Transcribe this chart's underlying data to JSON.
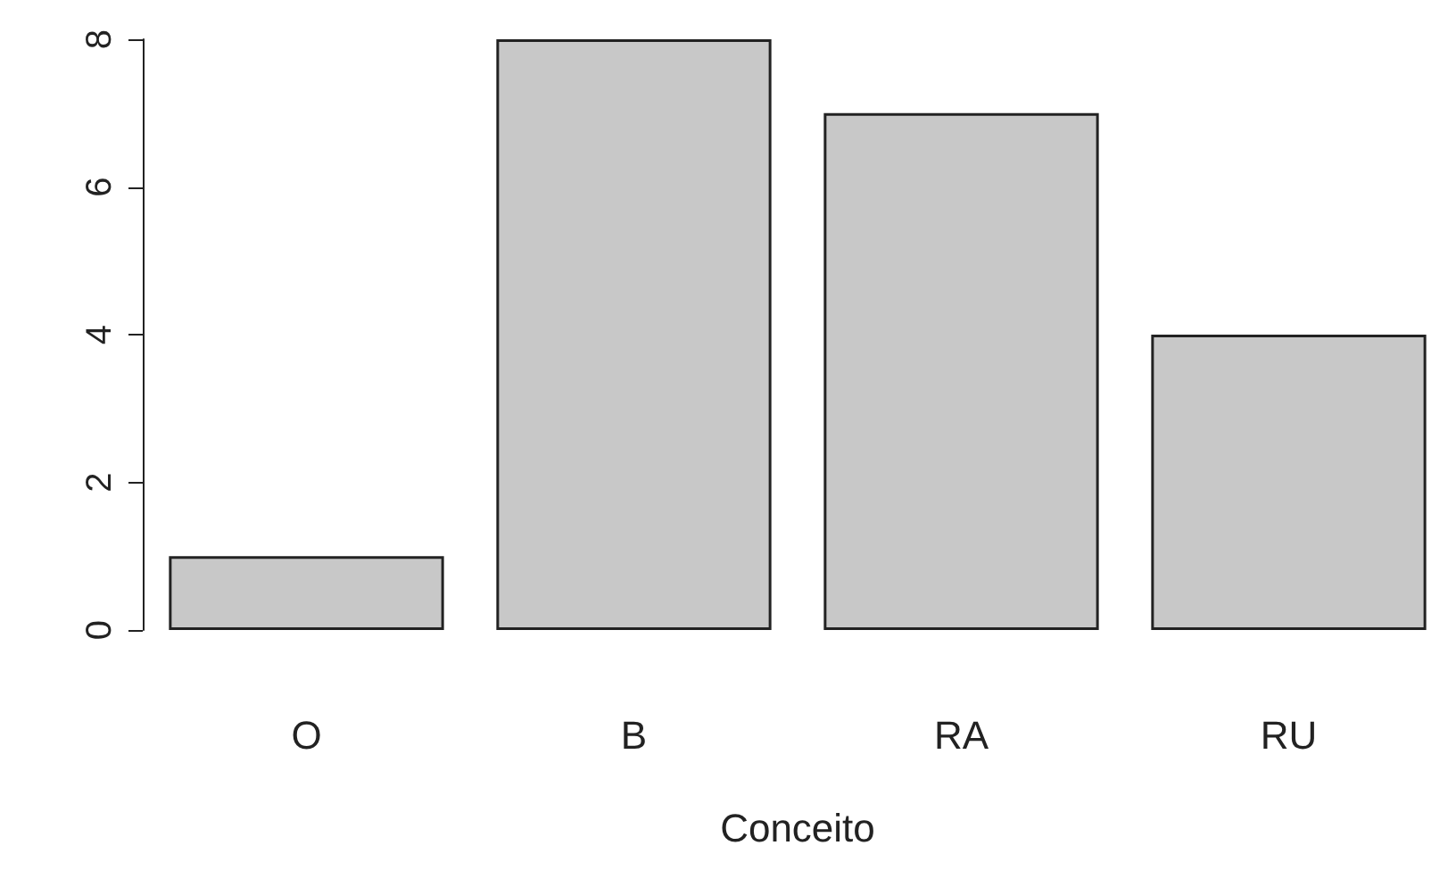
{
  "chart_data": {
    "type": "bar",
    "xlabel": "Conceito",
    "categories": [
      "O",
      "B",
      "RA",
      "RU"
    ],
    "values": [
      1,
      8,
      7,
      4
    ],
    "color": "#c8c8c8",
    "ylim": [
      0,
      8
    ],
    "yticks": [
      0,
      2,
      4,
      6,
      8
    ],
    "grid": false
  }
}
